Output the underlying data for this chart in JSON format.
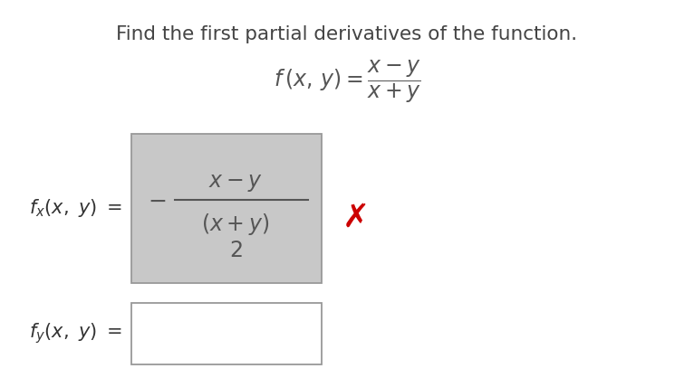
{
  "title": "Find the first partial derivatives of the function.",
  "title_fontsize": 15.5,
  "title_color": "#444444",
  "bg_color": "#ffffff",
  "fx_box_color": "#c8c8c8",
  "fy_box_color": "#ffffff",
  "box_edge_color": "#999999",
  "x_mark_color": "#cc0000",
  "math_color": "#555555",
  "label_color": "#333333"
}
